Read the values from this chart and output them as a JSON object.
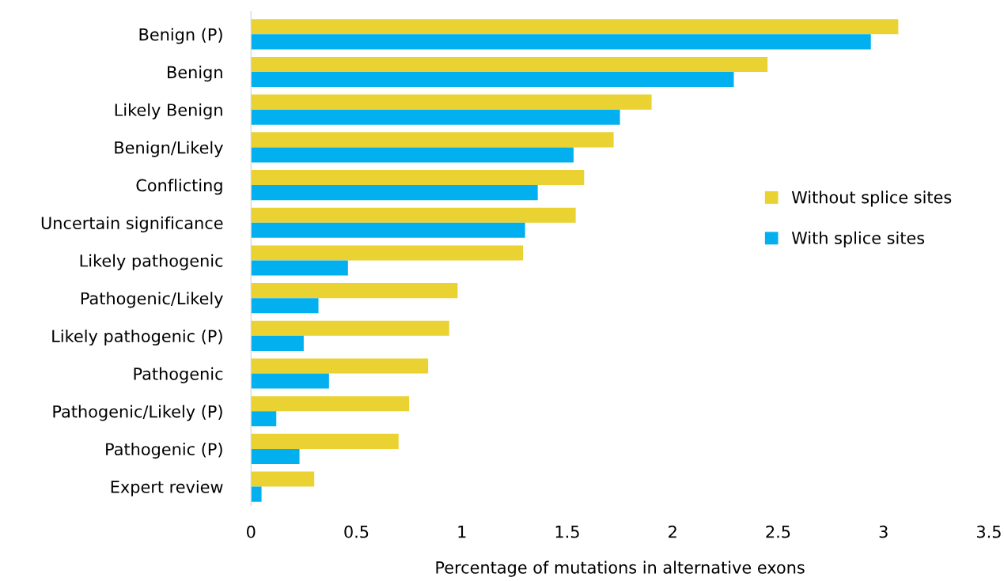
{
  "chart_data": {
    "type": "bar",
    "orientation": "horizontal",
    "xlabel": "Percentage of mutations in alternative exons",
    "categories": [
      "Benign (P)",
      "Benign",
      "Likely Benign",
      "Benign/Likely",
      "Conflicting",
      "Uncertain significance",
      "Likely pathogenic",
      "Pathogenic/Likely",
      "Likely pathogenic (P)",
      "Pathogenic",
      "Pathogenic/Likely (P)",
      "Pathogenic (P)",
      "Expert review"
    ],
    "series": [
      {
        "name": "Without splice sites",
        "color": "#e9d232",
        "values": [
          3.07,
          2.45,
          1.9,
          1.72,
          1.58,
          1.54,
          1.29,
          0.98,
          0.94,
          0.84,
          0.75,
          0.7,
          0.3
        ]
      },
      {
        "name": "With splice sites",
        "color": "#02b0ef",
        "values": [
          2.94,
          2.29,
          1.75,
          1.53,
          1.36,
          1.3,
          0.46,
          0.32,
          0.25,
          0.37,
          0.12,
          0.23,
          0.05
        ]
      }
    ],
    "xlim": [
      0,
      3.5
    ],
    "xticks": [
      0,
      0.5,
      1,
      1.5,
      2,
      2.5,
      3,
      3.5
    ],
    "grid": false,
    "legend": "right"
  }
}
